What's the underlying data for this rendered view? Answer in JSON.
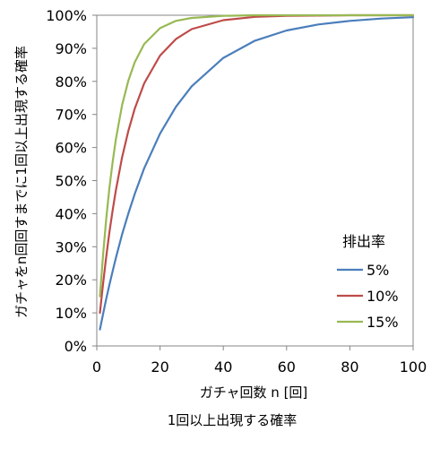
{
  "chart_data": {
    "type": "line",
    "title": "",
    "caption": "1回以上出現する確率",
    "xlabel": "ガチャ回数 n [回]",
    "ylabel": "ガチャをn回回すまでに1回以上出現する確率",
    "xlim": [
      0,
      100
    ],
    "ylim": [
      0,
      1
    ],
    "x_ticks": [
      0,
      20,
      40,
      60,
      80,
      100
    ],
    "x_tick_labels": [
      "0",
      "20",
      "40",
      "60",
      "80",
      "100"
    ],
    "y_ticks": [
      0,
      0.1,
      0.2,
      0.3,
      0.4,
      0.5,
      0.6,
      0.7,
      0.8,
      0.9,
      1.0
    ],
    "y_tick_labels": [
      "0%",
      "10%",
      "20%",
      "30%",
      "40%",
      "50%",
      "60%",
      "70%",
      "80%",
      "90%",
      "100%"
    ],
    "grid": false,
    "legend": {
      "title": "排出率",
      "placement": "right"
    },
    "x": [
      1,
      2,
      3,
      4,
      5,
      6,
      8,
      10,
      12,
      15,
      20,
      25,
      30,
      40,
      50,
      60,
      70,
      80,
      90,
      100
    ],
    "series": [
      {
        "name": "5%",
        "color": "#4a7ebb",
        "values": [
          0.05,
          0.0975,
          0.143,
          0.185,
          0.226,
          0.265,
          0.337,
          0.401,
          0.46,
          0.537,
          0.642,
          0.723,
          0.785,
          0.871,
          0.923,
          0.954,
          0.972,
          0.983,
          0.99,
          0.994
        ]
      },
      {
        "name": "10%",
        "color": "#be4b48",
        "values": [
          0.1,
          0.19,
          0.271,
          0.344,
          0.41,
          0.469,
          0.57,
          0.651,
          0.718,
          0.794,
          0.878,
          0.928,
          0.958,
          0.985,
          0.995,
          0.998,
          0.999,
          1.0,
          1.0,
          1.0
        ]
      },
      {
        "name": "15%",
        "color": "#98b954",
        "values": [
          0.15,
          0.278,
          0.386,
          0.478,
          0.556,
          0.623,
          0.728,
          0.803,
          0.858,
          0.913,
          0.961,
          0.983,
          0.992,
          0.998,
          1.0,
          1.0,
          1.0,
          1.0,
          1.0,
          1.0
        ]
      }
    ]
  }
}
